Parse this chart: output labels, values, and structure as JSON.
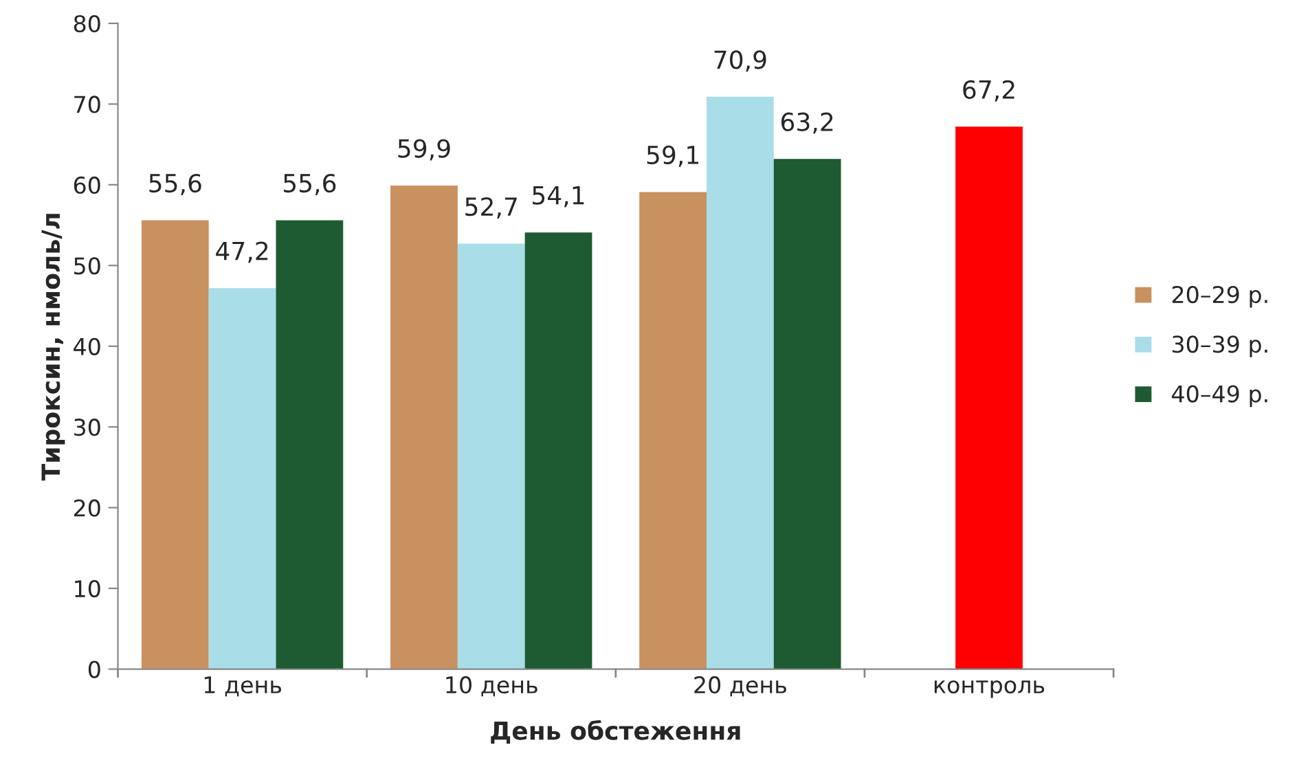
{
  "chart_data": {
    "type": "bar",
    "xlabel": "День обстеження",
    "ylabel": "Тироксин, нмоль/л",
    "categories": [
      "1 день",
      "10 день",
      "20 день",
      "контроль"
    ],
    "series": [
      {
        "name": "20–29 р.",
        "color": "#c8915f",
        "values": [
          55.6,
          59.9,
          59.1,
          null
        ],
        "value_labels": [
          "55,6",
          "59,9",
          "59,1",
          null
        ]
      },
      {
        "name": "30–39 р.",
        "color": "#a9dde8",
        "values": [
          47.2,
          52.7,
          70.9,
          null
        ],
        "value_labels": [
          "47,2",
          "52,7",
          "70,9",
          null
        ]
      },
      {
        "name": "40–49 р.",
        "color": "#1e5a32",
        "values": [
          55.6,
          54.1,
          63.2,
          null
        ],
        "value_labels": [
          "55,6",
          "54,1",
          "63,2",
          null
        ]
      },
      {
        "color": "#ff0000",
        "values": [
          null,
          null,
          null,
          67.2
        ],
        "value_labels": [
          null,
          null,
          null,
          "67,2"
        ]
      }
    ],
    "ylim": [
      0,
      80
    ],
    "yticks": [
      0,
      10,
      20,
      30,
      40,
      50,
      60,
      70,
      80
    ],
    "grid": false,
    "legend": "right"
  }
}
